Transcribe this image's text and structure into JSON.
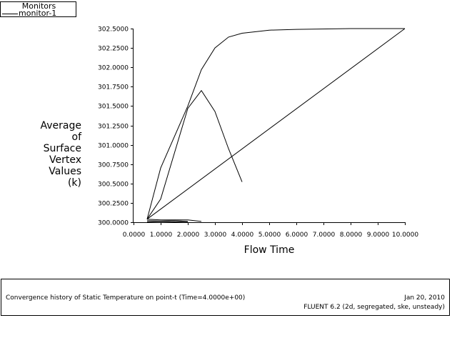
{
  "legend": {
    "title": "Monitors",
    "series_label": "monitor-1"
  },
  "chart_data": {
    "type": "line",
    "title": "",
    "xlabel": "Flow Time",
    "ylabel": "Average\nof\nSurface\nVertex\nValues\n(k)",
    "xlim": [
      0.0,
      10.0
    ],
    "ylim": [
      300.0,
      302.5
    ],
    "x_ticks": [
      "0.0000",
      "1.0000",
      "2.0000",
      "3.0000",
      "4.0000",
      "5.0000",
      "6.0000",
      "7.0000",
      "8.0000",
      "9.0000",
      "10.0000"
    ],
    "y_ticks": [
      "300.0000",
      "300.2500",
      "300.5000",
      "300.7500",
      "301.0000",
      "301.2500",
      "301.5000",
      "301.7500",
      "302.0000",
      "302.2500",
      "302.5000"
    ],
    "grid": false,
    "legend_position": "top-left",
    "series": [
      {
        "name": "monitor-1",
        "segments": [
          {
            "x": [
              0.5,
              10.0
            ],
            "y": [
              300.04,
              302.5
            ]
          },
          {
            "x": [
              0.5,
              1.0,
              2.0,
              2.5,
              3.0,
              3.5,
              4.0,
              5.0,
              6.0,
              8.0,
              10.0
            ],
            "y": [
              300.04,
              300.7,
              301.5,
              301.97,
              302.25,
              302.39,
              302.44,
              302.48,
              302.49,
              302.5,
              302.5
            ]
          },
          {
            "x": [
              0.5,
              1.0,
              2.0,
              2.5,
              3.0,
              3.5,
              4.0
            ],
            "y": [
              300.04,
              300.3,
              301.47,
              301.7,
              301.43,
              300.95,
              300.52
            ]
          },
          {
            "x": [
              0.5,
              1.0,
              1.5,
              2.0,
              2.5
            ],
            "y": [
              300.04,
              300.03,
              300.03,
              300.03,
              300.01
            ]
          },
          {
            "x": [
              0.5,
              1.0,
              1.5,
              2.0
            ],
            "y": [
              300.02,
              300.015,
              300.02,
              300.01
            ]
          },
          {
            "x": [
              0.5,
              1.0,
              1.5,
              2.0
            ],
            "y": [
              300.005,
              300.01,
              300.005,
              300.0
            ]
          }
        ]
      }
    ]
  },
  "footer": {
    "description": "Convergence history of Static Temperature on point-t  (Time=4.0000e+00)",
    "date": "Jan 20, 2010",
    "version": "FLUENT 6.2 (2d, segregated, ske, unsteady)"
  },
  "colors": {
    "background": "#ffffff",
    "line": "#000000"
  }
}
